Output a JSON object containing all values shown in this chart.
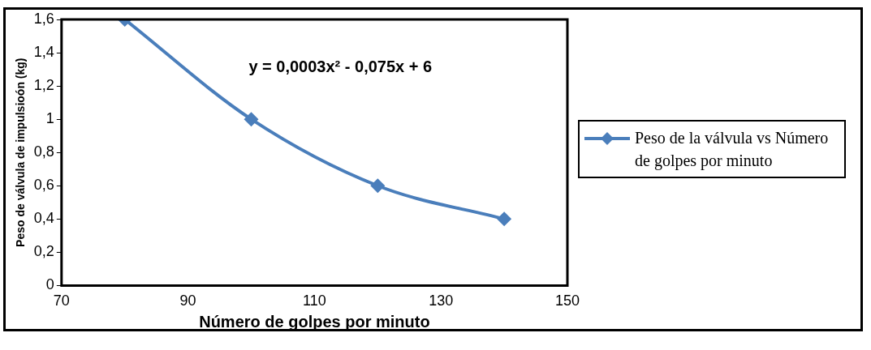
{
  "chart_data": {
    "type": "line",
    "xlabel": "Número de golpes por minuto",
    "ylabel": "Peso de válvula de impulsioón (kg)",
    "annotations": [
      "y = 0,0003x² - 0,075x + 6"
    ],
    "series": [
      {
        "name": "Peso de la válvula vs Número de golpes por minuto",
        "color": "#4a7ebb",
        "x": [
          80,
          100,
          120,
          140
        ],
        "values": [
          1.6,
          1.0,
          0.6,
          0.4
        ]
      }
    ],
    "xlim": [
      70,
      150
    ],
    "xticks": [
      70,
      90,
      110,
      130,
      150
    ],
    "ylim": [
      0,
      1.6
    ],
    "yticks": [
      0,
      {
        "value": 0.2,
        "label": "0,2"
      },
      {
        "value": 0.4,
        "label": "0,4"
      },
      {
        "value": 0.6,
        "label": "0,6"
      },
      {
        "value": 0.8,
        "label": "0,8"
      },
      1,
      {
        "value": 1.2,
        "label": "1,2"
      },
      {
        "value": 1.4,
        "label": "1,4"
      },
      {
        "value": 1.6,
        "label": "1,6"
      }
    ],
    "grid": false,
    "legend": "right",
    "marker": "diamond",
    "line_style": "solid"
  }
}
